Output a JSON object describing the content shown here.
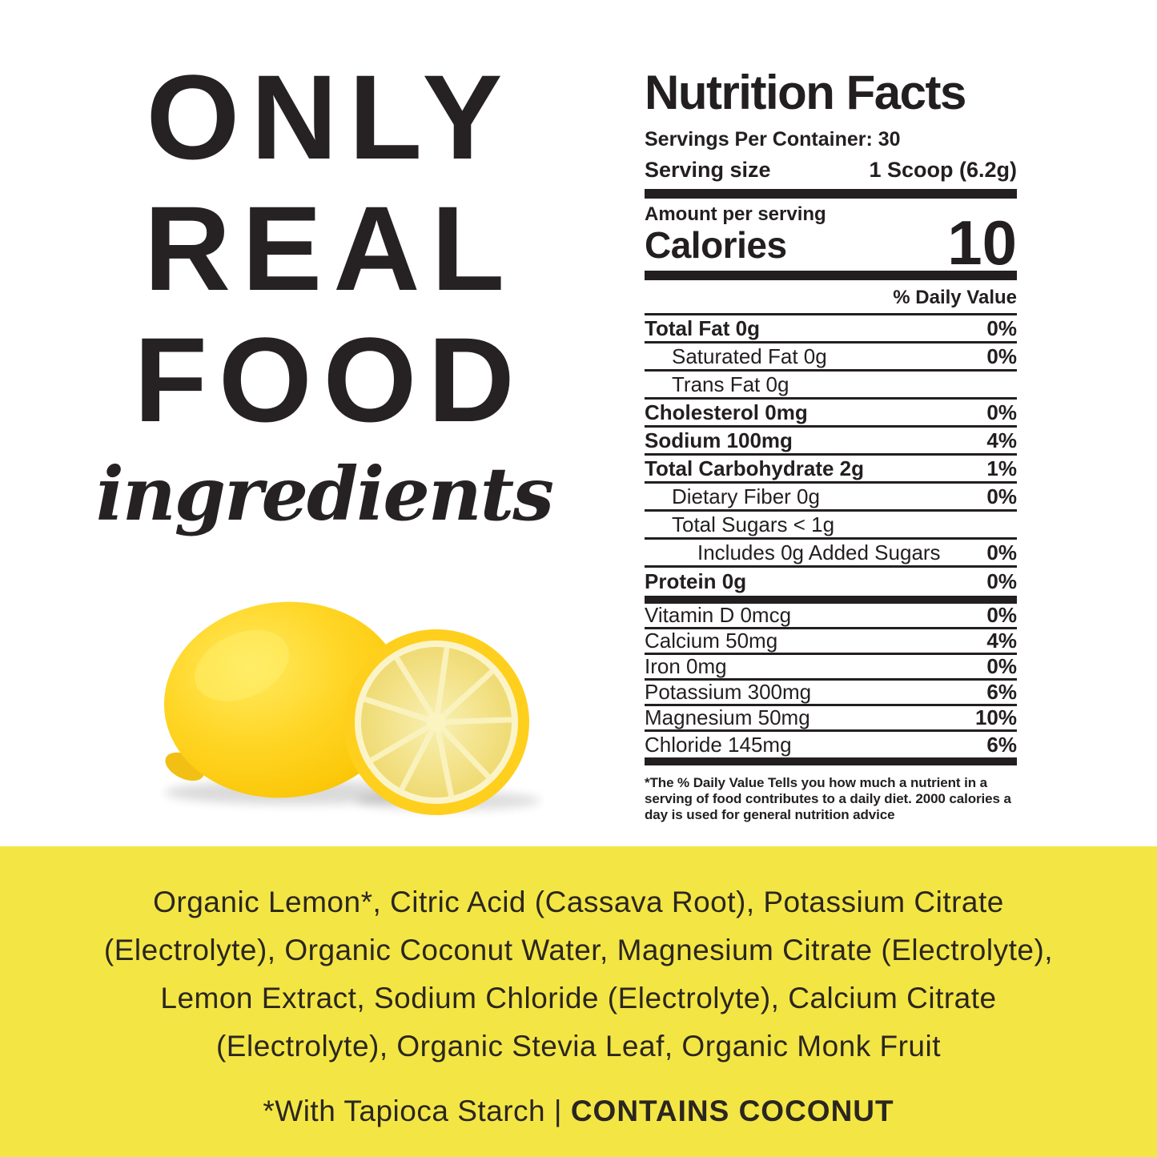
{
  "hero": {
    "line1": "ONLY",
    "line2": "REAL",
    "line3": "FOOD",
    "script": "ingredients"
  },
  "lemon_illustration": {
    "description": "whole lemon with halved lemon",
    "rind_color": "#FFD21E",
    "flesh_color": "#F3E289",
    "shadow_color": "#000000"
  },
  "nutrition": {
    "title": "Nutrition Facts",
    "servings_per_container": "Servings Per Container: 30",
    "serving_size_label": "Serving size",
    "serving_size_value": "1 Scoop (6.2g)",
    "amount_per_serving": "Amount per serving",
    "calories_label": "Calories",
    "calories_value": "10",
    "daily_value_header": "% Daily Value",
    "rows": [
      {
        "label": "Total Fat 0g",
        "dv": "0%",
        "bold": true,
        "indent": 0
      },
      {
        "label": "Saturated Fat 0g",
        "dv": "0%",
        "bold": false,
        "indent": 1
      },
      {
        "label": "Trans Fat 0g",
        "dv": "",
        "bold": false,
        "indent": 1
      },
      {
        "label": "Cholesterol 0mg",
        "dv": "0%",
        "bold": true,
        "indent": 0
      },
      {
        "label": "Sodium 100mg",
        "dv": "4%",
        "bold": true,
        "indent": 0
      },
      {
        "label": "Total Carbohydrate 2g",
        "dv": "1%",
        "bold": true,
        "indent": 0
      },
      {
        "label": "Dietary Fiber 0g",
        "dv": "0%",
        "bold": false,
        "indent": 1
      },
      {
        "label": "Total Sugars < 1g",
        "dv": "",
        "bold": false,
        "indent": 1
      },
      {
        "label": "Includes 0g Added Sugars",
        "dv": "0%",
        "bold": false,
        "indent": 2
      },
      {
        "label": "Protein 0g",
        "dv": "0%",
        "bold": true,
        "indent": 0,
        "thick_after": true
      },
      {
        "label": "Vitamin D 0mcg",
        "dv": "0%",
        "bold": false,
        "indent": 0,
        "mineral": true
      },
      {
        "label": "Calcium 50mg",
        "dv": "4%",
        "bold": false,
        "indent": 0,
        "mineral": true
      },
      {
        "label": "Iron 0mg",
        "dv": "0%",
        "bold": false,
        "indent": 0,
        "mineral": true
      },
      {
        "label": "Potassium 300mg",
        "dv": "6%",
        "bold": false,
        "indent": 0,
        "mineral": true
      },
      {
        "label": "Magnesium 50mg",
        "dv": "10%",
        "bold": false,
        "indent": 0,
        "mineral": true
      },
      {
        "label": "Chloride 145mg",
        "dv": "6%",
        "bold": false,
        "indent": 0,
        "mineral": true,
        "thick_after": true
      }
    ],
    "footnote": "*The % Daily Value Tells you how much a nutrient in a serving of food contributes to a daily diet. 2000 calories a day is used for general nutrition advice"
  },
  "banner": {
    "background_color": "#F3E644",
    "lines": [
      "Organic Lemon*, Citric Acid (Cassava Root), Potassium Citrate",
      "(Electrolyte), Organic Coconut Water, Magnesium Citrate (Electrolyte),",
      "Lemon Extract, Sodium Chloride (Electrolyte), Calcium Citrate",
      "(Electrolyte), Organic Stevia Leaf, Organic Monk Fruit"
    ],
    "footer_left": "*With Tapioca Starch | ",
    "footer_right": "CONTAINS COCONUT"
  }
}
